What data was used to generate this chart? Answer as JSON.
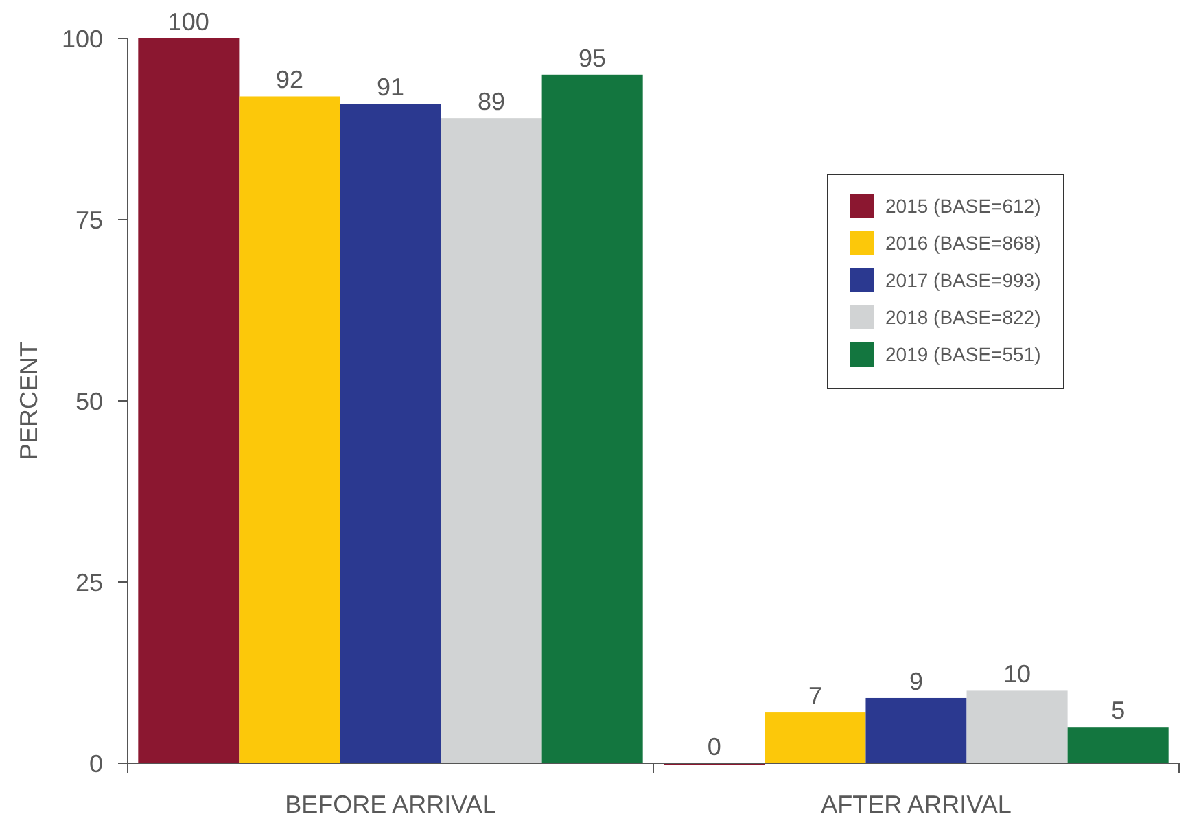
{
  "chart_data": {
    "type": "bar",
    "ylabel": "PERCENT",
    "categories": [
      "BEFORE ARRIVAL",
      "AFTER ARRIVAL"
    ],
    "series": [
      {
        "name": "2015 (BASE=612)",
        "color": "#8b1730",
        "values": [
          100,
          0
        ],
        "value_labels": [
          "100",
          "0"
        ]
      },
      {
        "name": "2016 (BASE=868)",
        "color": "#fcc80a",
        "values": [
          92,
          7
        ],
        "value_labels": [
          "92",
          "7"
        ]
      },
      {
        "name": "2017 (BASE=993)",
        "color": "#2b3990",
        "values": [
          91,
          9
        ],
        "value_labels": [
          "91",
          "9"
        ]
      },
      {
        "name": "2018 (BASE=822)",
        "color": "#d1d3d4",
        "values": [
          89,
          10
        ],
        "value_labels": [
          "89",
          "10"
        ]
      },
      {
        "name": "2019 (BASE=551)",
        "color": "#13763f",
        "values": [
          95,
          5
        ],
        "value_labels": [
          "95",
          "5"
        ]
      }
    ],
    "ylim": [
      0,
      100
    ],
    "yticks": [
      0,
      25,
      50,
      75,
      100
    ],
    "legend": "top right"
  }
}
